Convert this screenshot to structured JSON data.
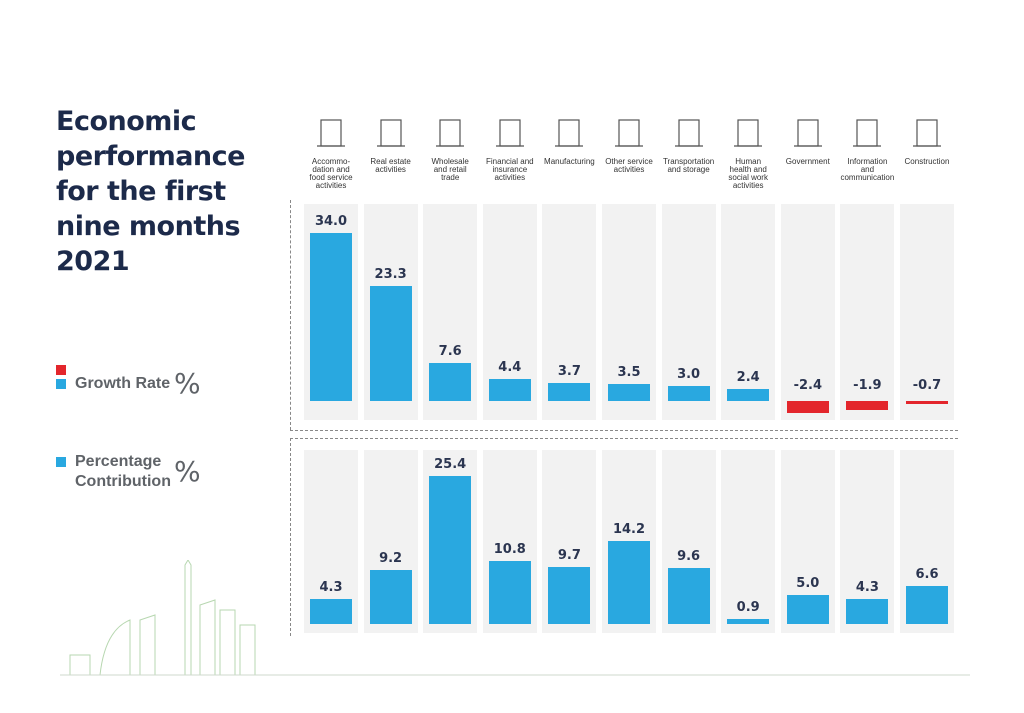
{
  "title": [
    "Economic",
    "performance",
    "for the first",
    "nine months",
    "2021"
  ],
  "legend": {
    "growth_label": "Growth Rate",
    "contribution_label": "Percentage",
    "contribution_label2": "Contribution",
    "unit": "%",
    "colors": {
      "positive": "#29a8e0",
      "negative": "#e3262c"
    }
  },
  "chart_data": [
    {
      "type": "bar",
      "title": "Growth Rate %",
      "categories": [
        "Accommo-dation and food service activities",
        "Real estate activities",
        "Wholesale and retail trade",
        "Financial and insurance activities",
        "Manufacturing",
        "Other service activities",
        "Transportation and storage",
        "Human health and social work activities",
        "Government",
        "Information and communication",
        "Construction"
      ],
      "values": [
        34.0,
        23.3,
        7.6,
        4.4,
        3.7,
        3.5,
        3.0,
        2.4,
        -2.4,
        -1.9,
        -0.7
      ],
      "labels": [
        "34.0",
        "23.3",
        "7.6",
        "4.4",
        "3.7",
        "3.5",
        "3.0",
        "2.4",
        "-2.4",
        "-1.9",
        "-0.7"
      ],
      "colors": {
        "positive": "#29a8e0",
        "negative": "#e3262c"
      },
      "grid": false
    },
    {
      "type": "bar",
      "title": "Percentage Contribution %",
      "categories": [
        "Accommo-dation and food service activities",
        "Real estate activities",
        "Wholesale and retail trade",
        "Financial and insurance activities",
        "Manufacturing",
        "Other service activities",
        "Transportation and storage",
        "Human health and social work activities",
        "Government",
        "Information and communication",
        "Construction"
      ],
      "values": [
        4.3,
        9.2,
        25.4,
        10.8,
        9.7,
        14.2,
        9.6,
        0.9,
        5.0,
        4.3,
        6.6
      ],
      "labels": [
        "4.3",
        "9.2",
        "25.4",
        "10.8",
        "9.7",
        "14.2",
        "9.6",
        "0.9",
        "5.0",
        "4.3",
        "6.6"
      ],
      "colors": {
        "positive": "#29a8e0"
      },
      "grid": false
    }
  ],
  "category_labels": [
    [
      "Accommo-",
      "dation and",
      "food service",
      "activities"
    ],
    [
      "Real estate",
      "activities"
    ],
    [
      "Wholesale",
      "and retail",
      "trade"
    ],
    [
      "Financial and",
      "insurance",
      "activities"
    ],
    [
      "Manufacturing"
    ],
    [
      "Other service",
      "activities"
    ],
    [
      "Transportation",
      "and storage"
    ],
    [
      "Human",
      "health and",
      "social work",
      "activities"
    ],
    [
      "Government"
    ],
    [
      "Information",
      "and",
      "communication"
    ],
    [
      "Construction"
    ]
  ],
  "icons": [
    "hotel-icon",
    "building-icon",
    "shopping-cart-icon",
    "currency-coin-icon",
    "robot-arm-icon",
    "gear-icon",
    "airplane-taxi-icon",
    "healthcare-icon",
    "government-building-icon",
    "chat-bubbles-icon",
    "crane-icon"
  ]
}
